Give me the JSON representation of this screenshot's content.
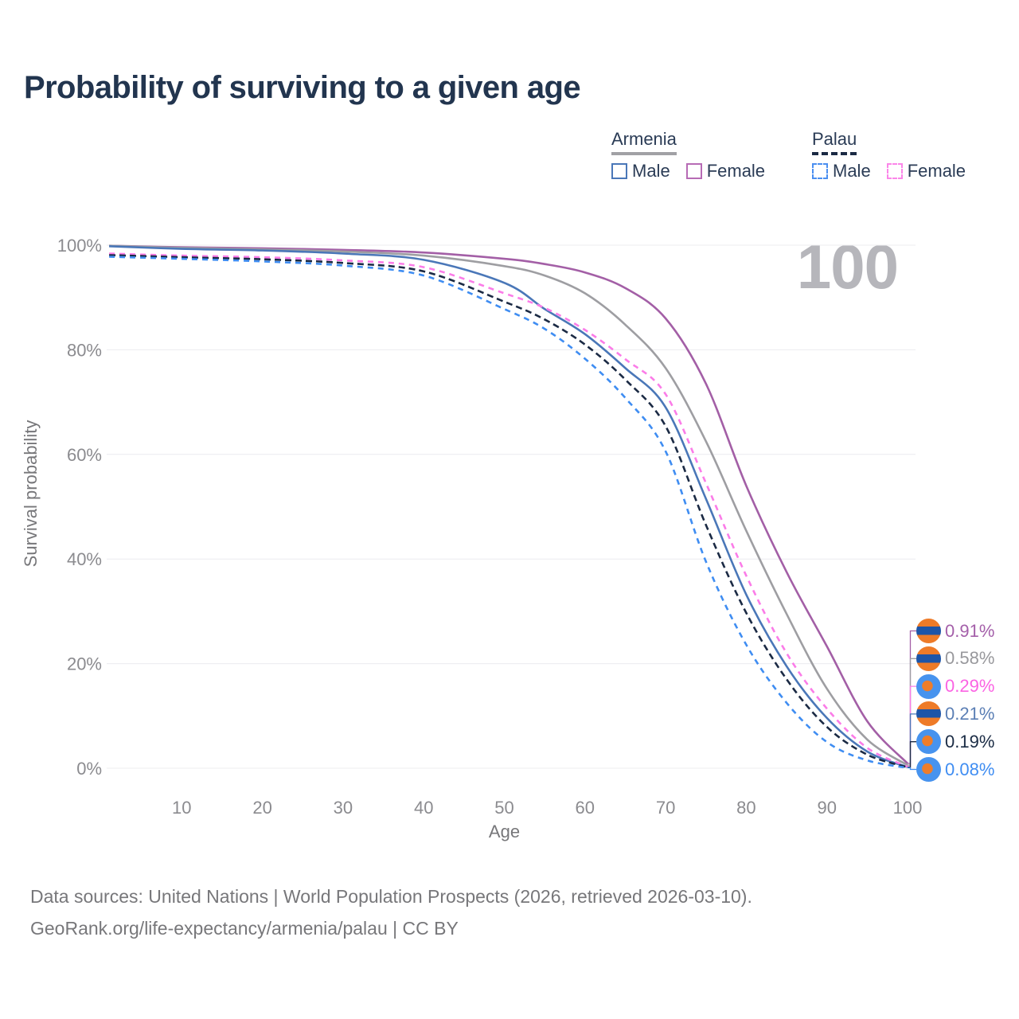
{
  "title": "Probability of surviving to a given age",
  "watermark_age": "100",
  "legend": {
    "armenia": {
      "title": "Armenia",
      "male_label": "Male",
      "female_label": "Female",
      "underline_color": "#a1a1a5",
      "male_color": "#4a77b8",
      "female_color": "#b76bb5"
    },
    "palau": {
      "title": "Palau",
      "male_label": "Male",
      "female_label": "Female",
      "underline_color": "#1b2a44",
      "male_color": "#4b8ff0",
      "female_color": "#fb86e9"
    }
  },
  "chart_data": {
    "type": "line",
    "title": "Probability of surviving to a given age",
    "xlabel": "Age",
    "ylabel": "Survival probability",
    "xlim": [
      0,
      100
    ],
    "ylim": [
      0,
      100
    ],
    "x_ticks": [
      10,
      20,
      30,
      40,
      50,
      60,
      70,
      80,
      90,
      100
    ],
    "y_ticks": [
      0,
      20,
      40,
      60,
      80,
      100
    ],
    "y_tick_suffix": "%",
    "grid": "horizontal",
    "legend_position": "top-right",
    "ages": [
      1,
      10,
      20,
      30,
      40,
      50,
      55,
      60,
      65,
      70,
      75,
      80,
      85,
      90,
      95,
      100
    ],
    "series": [
      {
        "name": "Armenia Female",
        "color": "#a35fa6",
        "dash": null,
        "flag": "armenia",
        "end_label": "0.91%",
        "label_color": "#a45fa9",
        "label_row": 0,
        "values": [
          99.9,
          99.6,
          99.4,
          99.1,
          98.6,
          97.4,
          96.4,
          94.8,
          91.8,
          86.0,
          73.5,
          54.0,
          37.5,
          23.3,
          9.0,
          0.91
        ]
      },
      {
        "name": "Armenia (both sexes)",
        "color": "#9e9ea2",
        "dash": null,
        "flag": "armenia",
        "end_label": "0.58%",
        "label_color": "#98989c",
        "label_row": 1,
        "values": [
          99.9,
          99.5,
          99.2,
          98.8,
          98.0,
          96.0,
          94.2,
          90.8,
          84.8,
          76.5,
          62.5,
          45.4,
          29.5,
          15.2,
          5.5,
          0.58
        ]
      },
      {
        "name": "Armenia Male",
        "color": "#4a77b8",
        "dash": null,
        "flag": "armenia",
        "end_label": "0.21%",
        "label_color": "#5b7fb5",
        "label_row": 3,
        "values": [
          99.8,
          99.3,
          99.0,
          98.4,
          97.2,
          92.8,
          87.8,
          83.0,
          76.5,
          69.0,
          51.5,
          33.2,
          19.5,
          9.6,
          3.2,
          0.21
        ]
      },
      {
        "name": "Palau Female",
        "color": "#fb7ce8",
        "dash": "7 6",
        "flag": "palau",
        "end_label": "0.29%",
        "label_color": "#fb63e3",
        "label_row": 2,
        "values": [
          98.4,
          98.0,
          97.7,
          97.1,
          95.8,
          90.8,
          88.0,
          83.8,
          78.2,
          71.5,
          54.5,
          36.8,
          22.0,
          11.4,
          3.9,
          0.29
        ]
      },
      {
        "name": "Palau (both sexes)",
        "color": "#1b2a44",
        "dash": "8 5",
        "flag": "palau",
        "end_label": "0.19%",
        "label_color": "#1b2c45",
        "label_row": 4,
        "values": [
          98.1,
          97.7,
          97.3,
          96.6,
          95.0,
          89.2,
          85.8,
          81.0,
          74.3,
          65.4,
          46.5,
          29.7,
          17.0,
          7.9,
          2.6,
          0.19
        ]
      },
      {
        "name": "Palau Male",
        "color": "#3f8df2",
        "dash": "7 6",
        "flag": "palau",
        "end_label": "0.08%",
        "label_color": "#3f8df2",
        "label_row": 5,
        "values": [
          97.8,
          97.4,
          96.9,
          96.1,
          94.2,
          87.8,
          84.0,
          78.3,
          70.8,
          60.6,
          39.5,
          23.6,
          12.5,
          5.0,
          1.5,
          0.08
        ]
      }
    ]
  },
  "footer": {
    "line1": "Data sources: United Nations | World Population Prospects (2026, retrieved 2026-03-10).",
    "line2": "GeoRank.org/life-expectancy/armenia/palau | CC BY"
  }
}
